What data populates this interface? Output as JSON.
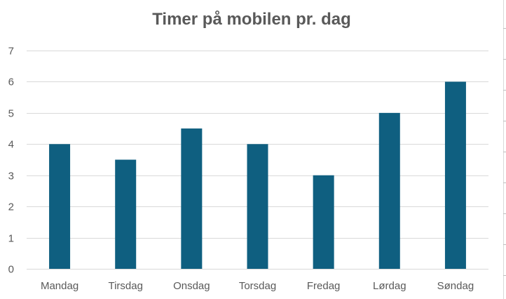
{
  "chart_data": {
    "type": "bar",
    "title": "Timer på mobilen pr. dag",
    "xlabel": "",
    "ylabel": "",
    "categories": [
      "Mandag",
      "Tirsdag",
      "Onsdag",
      "Torsdag",
      "Fredag",
      "Lørdag",
      "Søndag"
    ],
    "values": [
      4,
      3.5,
      4.5,
      4,
      3,
      5,
      6
    ],
    "ylim": [
      0,
      7
    ],
    "yticks": [
      0,
      1,
      2,
      3,
      4,
      5,
      6,
      7
    ],
    "grid": true,
    "legend": "none",
    "bar_color": "#0f5f80"
  }
}
